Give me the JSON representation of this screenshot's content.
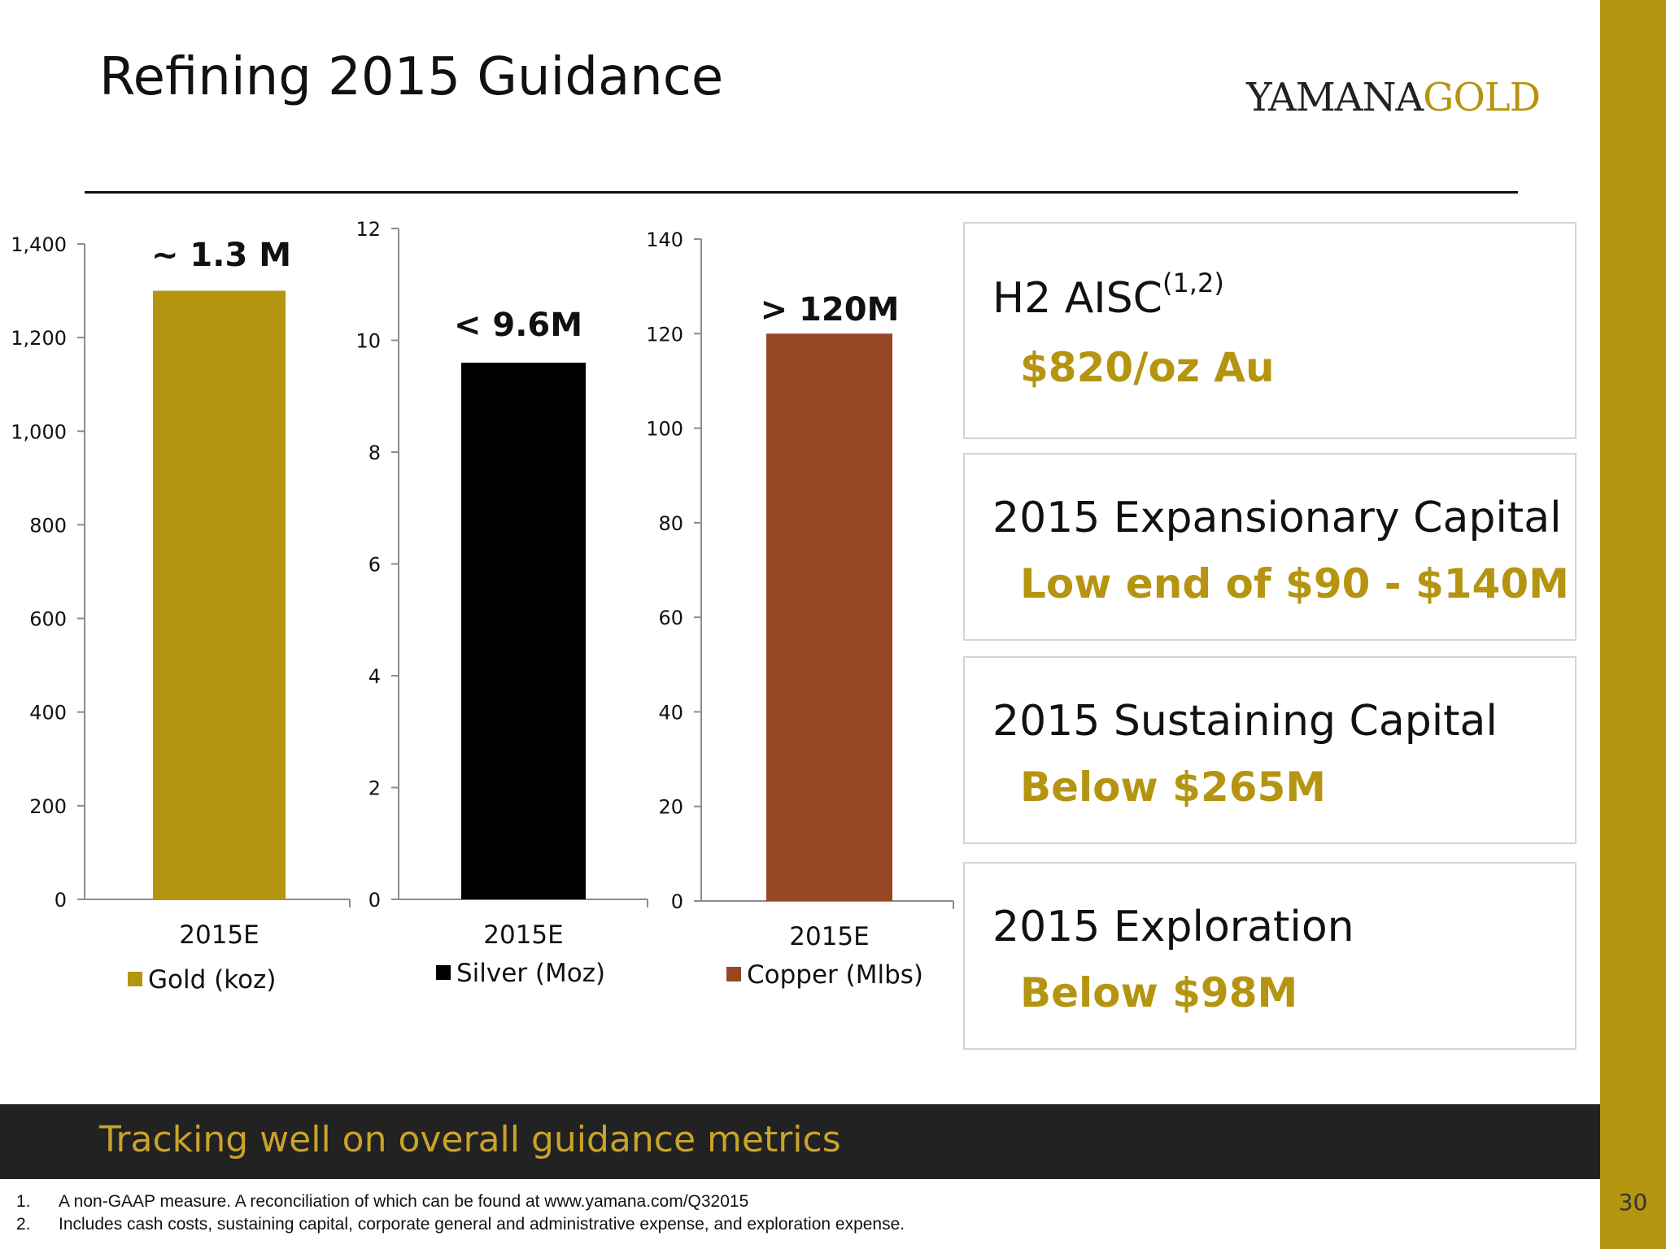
{
  "title": "Refining 2015 Guidance",
  "logo": {
    "part1": "YAMANA",
    "part2": "GOLD"
  },
  "colors": {
    "accent": "#b59410",
    "gold": "#b59410",
    "silver": "#000000",
    "copper": "#974724",
    "banner": "#222222"
  },
  "chart_data": [
    {
      "type": "bar",
      "categories": [
        "2015E"
      ],
      "series": [
        {
          "name": "Gold (koz)",
          "values": [
            1300
          ]
        }
      ],
      "data_label": "~ 1.3 M",
      "ylim": [
        0,
        1400
      ],
      "yticks": [
        0,
        200,
        400,
        600,
        800,
        1000,
        1200,
        1400
      ],
      "ytick_labels": [
        "0",
        "200",
        "400",
        "600",
        "800",
        "1,000",
        "1,200",
        "1,400"
      ],
      "legend": "bottom",
      "grid": false
    },
    {
      "type": "bar",
      "categories": [
        "2015E"
      ],
      "series": [
        {
          "name": "Silver (Moz)",
          "values": [
            9.6
          ]
        }
      ],
      "data_label": "< 9.6M",
      "ylim": [
        0,
        12
      ],
      "yticks": [
        0,
        2,
        4,
        6,
        8,
        10,
        12
      ],
      "ytick_labels": [
        "0",
        "2",
        "4",
        "6",
        "8",
        "10",
        "12"
      ],
      "legend": "bottom",
      "grid": false
    },
    {
      "type": "bar",
      "categories": [
        "2015E"
      ],
      "series": [
        {
          "name": "Copper (Mlbs)",
          "values": [
            120
          ]
        }
      ],
      "data_label": "> 120M",
      "ylim": [
        0,
        140
      ],
      "yticks": [
        0,
        20,
        40,
        60,
        80,
        100,
        120,
        140
      ],
      "ytick_labels": [
        "0",
        "20",
        "40",
        "60",
        "80",
        "100",
        "120",
        "140"
      ],
      "legend": "bottom",
      "grid": false
    }
  ],
  "cards": [
    {
      "heading": "H2 AISC",
      "sup": "(1,2)",
      "value": "$820/oz Au"
    },
    {
      "heading": "2015 Expansionary Capital",
      "sup": "",
      "value": "Low end of $90 - $140M"
    },
    {
      "heading": "2015 Sustaining Capital",
      "sup": "",
      "value": "Below $265M"
    },
    {
      "heading": "2015 Exploration",
      "sup": "",
      "value": "Below $98M"
    }
  ],
  "banner": "Tracking well on overall guidance metrics",
  "footnotes": [
    {
      "num": "1.",
      "text": "A non-GAAP measure. A reconciliation of  which can be found at www.yamana.com/Q32015"
    },
    {
      "num": "2.",
      "text": "Includes cash costs, sustaining capital, corporate general and administrative expense, and exploration expense."
    }
  ],
  "page_number": "30"
}
